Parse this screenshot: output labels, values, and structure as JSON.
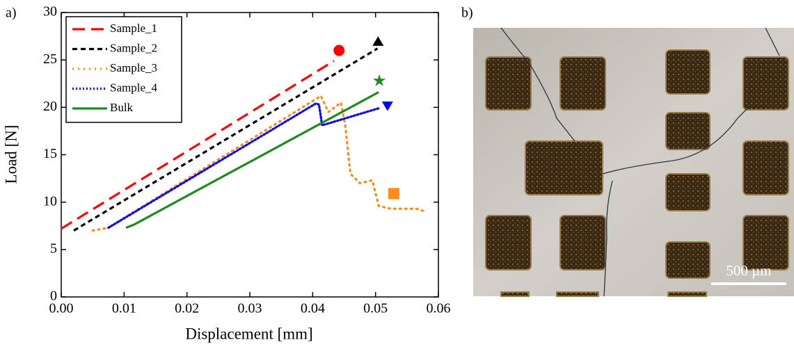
{
  "chart_data": {
    "type": "line",
    "xlabel": "Displacement [mm]",
    "ylabel": "Load [N]",
    "xlim": [
      0,
      0.06
    ],
    "ylim": [
      0,
      30
    ],
    "xticks": [
      {
        "value": 0,
        "label": "0.00"
      },
      0.01,
      0.02,
      0.03,
      0.04,
      0.05,
      0.06
    ],
    "yticks": [
      0,
      5,
      10,
      15,
      20,
      25,
      30
    ],
    "legend": "upper left",
    "series": [
      {
        "name": "Sample_1",
        "color": "#ff0000",
        "dash": "18 9",
        "x": [
          0,
          0.0434
        ],
        "values": [
          7.2,
          24.9
        ],
        "end_marker": {
          "x": 0.0442,
          "y": 26.0,
          "shape": "circle"
        }
      },
      {
        "name": "Sample_2",
        "color": "#000000",
        "dash": "7 5",
        "x": [
          0.002,
          0.0503
        ],
        "values": [
          7.0,
          26.2
        ],
        "end_marker": {
          "x": 0.0504,
          "y": 26.9,
          "shape": "triangle"
        }
      },
      {
        "name": "Sample_3",
        "color": "#ff8c1a",
        "dash": "2 6",
        "x": [
          0.005,
          0.0075,
          0.0413,
          0.0425,
          0.0445,
          0.0452,
          0.046,
          0.0475,
          0.0495,
          0.0505,
          0.0525,
          0.0565,
          0.058
        ],
        "values": [
          7.0,
          7.3,
          21.2,
          19.5,
          20.5,
          18.0,
          13.0,
          12.0,
          12.3,
          9.6,
          9.3,
          9.3,
          9.0
        ],
        "end_marker": {
          "x": 0.0529,
          "y": 10.9,
          "shape": "square"
        }
      },
      {
        "name": "Sample_4",
        "color": "#0000ff",
        "dash": "2 3",
        "x": [
          0.0075,
          0.0405,
          0.041,
          0.0415,
          0.0505
        ],
        "values": [
          7.3,
          20.4,
          20.3,
          18.1,
          19.9
        ],
        "end_marker": {
          "x": 0.0519,
          "y": 20.2,
          "shape": "triangle-down"
        }
      },
      {
        "name": "Bulk",
        "color": "#1f8a1f",
        "dash": "none",
        "x": [
          0.0103,
          0.0115,
          0.0505
        ],
        "values": [
          7.3,
          7.6,
          21.6
        ],
        "end_marker": {
          "x": 0.0506,
          "y": 22.8,
          "shape": "star"
        }
      }
    ]
  },
  "panel_labels": [
    "a)",
    "b)"
  ],
  "micrograph": {
    "scale_bar": "500 µm"
  }
}
